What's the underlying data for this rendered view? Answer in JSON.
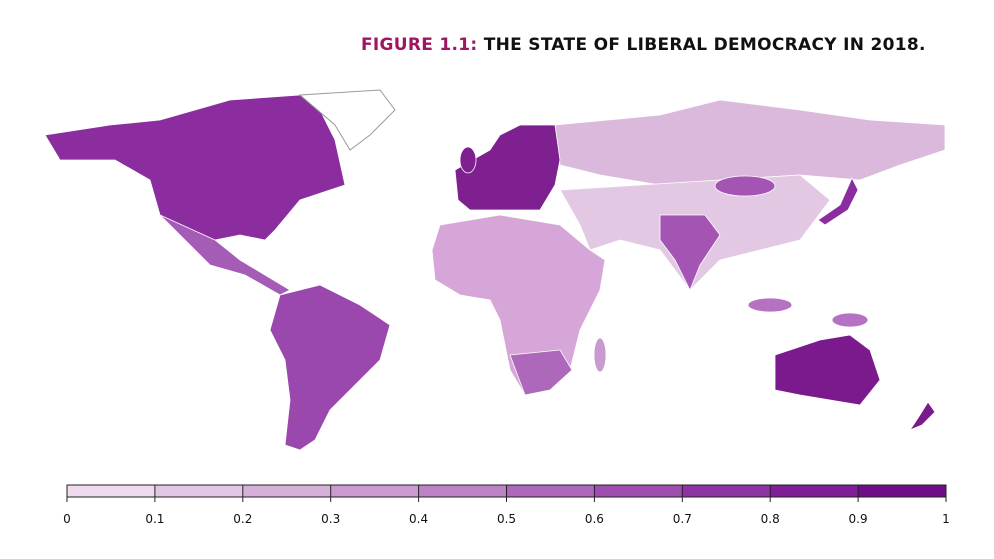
{
  "title": {
    "label": "FIGURE 1.1:",
    "text": "THE STATE OF LIBERAL DEMOCRACY IN 2018."
  },
  "legend": {
    "xlim": [
      0,
      1
    ],
    "ticks": [
      0,
      0.1,
      0.2,
      0.3,
      0.4,
      0.5,
      0.6,
      0.7,
      0.8,
      0.9,
      1
    ],
    "colors": [
      "#eedbee",
      "#e3c6e4",
      "#d7b0da",
      "#cb9ad0",
      "#bd82c6",
      "#ae68bb",
      "#9e4db0",
      "#8d33a4",
      "#7e1f97",
      "#6f0d89"
    ]
  }
}
